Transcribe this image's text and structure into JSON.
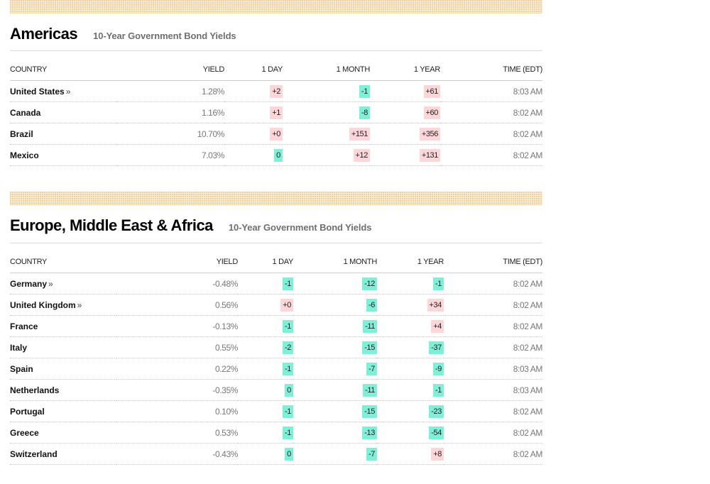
{
  "sections": [
    {
      "title": "Americas",
      "subtitle": "10-Year Government Bond Yields",
      "columns": [
        "COUNTRY",
        "YIELD",
        "1 DAY",
        "1 MONTH",
        "1 YEAR",
        "TIME (EDT)"
      ],
      "rows": [
        {
          "country": "United States",
          "more": "»",
          "yield": "1.28%",
          "day": "+2",
          "month": "-1",
          "year": "+61",
          "time": "8:03 AM"
        },
        {
          "country": "Canada",
          "more": "",
          "yield": "1.16%",
          "day": "+1",
          "month": "-8",
          "year": "+60",
          "time": "8:02 AM"
        },
        {
          "country": "Brazil",
          "more": "",
          "yield": "10.70%",
          "day": "+0",
          "month": "+151",
          "year": "+356",
          "time": "8:02 AM"
        },
        {
          "country": "Mexico",
          "more": "",
          "yield": "7.03%",
          "day": "0",
          "month": "+12",
          "year": "+131",
          "time": "8:02 AM"
        }
      ]
    },
    {
      "title": "Europe, Middle East & Africa",
      "subtitle": "10-Year Government Bond Yields",
      "columns": [
        "COUNTRY",
        "YIELD",
        "1 DAY",
        "1 MONTH",
        "1 YEAR",
        "TIME (EDT)"
      ],
      "rows": [
        {
          "country": "Germany",
          "more": "»",
          "yield": "-0.48%",
          "day": "-1",
          "month": "-12",
          "year": "-1",
          "time": "8:02 AM"
        },
        {
          "country": "United Kingdom",
          "more": "»",
          "yield": "0.56%",
          "day": "+0",
          "month": "-6",
          "year": "+34",
          "time": "8:02 AM"
        },
        {
          "country": "France",
          "more": "",
          "yield": "-0.13%",
          "day": "-1",
          "month": "-11",
          "year": "+4",
          "time": "8:02 AM"
        },
        {
          "country": "Italy",
          "more": "",
          "yield": "0.55%",
          "day": "-2",
          "month": "-15",
          "year": "-37",
          "time": "8:02 AM"
        },
        {
          "country": "Spain",
          "more": "",
          "yield": "0.22%",
          "day": "-1",
          "month": "-7",
          "year": "-9",
          "time": "8:03 AM"
        },
        {
          "country": "Netherlands",
          "more": "",
          "yield": "-0.35%",
          "day": "0",
          "month": "-11",
          "year": "-1",
          "time": "8:03 AM"
        },
        {
          "country": "Portugal",
          "more": "",
          "yield": "0.10%",
          "day": "-1",
          "month": "-15",
          "year": "-23",
          "time": "8:02 AM"
        },
        {
          "country": "Greece",
          "more": "",
          "yield": "0.53%",
          "day": "-1",
          "month": "-13",
          "year": "-54",
          "time": "8:02 AM"
        },
        {
          "country": "Switzerland",
          "more": "",
          "yield": "-0.43%",
          "day": "0",
          "month": "-7",
          "year": "+8",
          "time": "8:02 AM"
        }
      ]
    }
  ],
  "colors": {
    "positive_change_bg": "#fdd6d9",
    "negative_change_bg": "#7ff0d7",
    "pattern_bg": "#fbefd9",
    "pattern_dot": "#f0c689"
  }
}
